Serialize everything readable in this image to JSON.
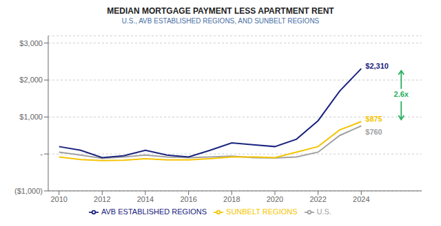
{
  "chart_data": {
    "type": "line",
    "title": "MEDIAN MORTGAGE PAYMENT LESS APARTMENT RENT",
    "subtitle": "U.S., AVB ESTABLISHED REGIONS, AND SUNBELT REGIONS",
    "x": [
      2010,
      2011,
      2012,
      2013,
      2014,
      2015,
      2016,
      2017,
      2018,
      2019,
      2020,
      2021,
      2022,
      2023,
      2024
    ],
    "series": [
      {
        "name": "U.S.",
        "color": "#a0a0a0",
        "values": [
          50,
          -30,
          -120,
          -80,
          -30,
          -80,
          -100,
          -80,
          -60,
          -100,
          -110,
          -80,
          50,
          500,
          760
        ]
      },
      {
        "name": "AVB ESTABLISHED REGIONS",
        "color": "#1a237e",
        "values": [
          200,
          100,
          -100,
          -50,
          100,
          -30,
          -80,
          100,
          300,
          250,
          200,
          400,
          900,
          1700,
          2310
        ]
      },
      {
        "name": "SUNBELT REGIONS",
        "color": "#f5c400",
        "values": [
          -80,
          -150,
          -180,
          -170,
          -130,
          -160,
          -160,
          -130,
          -80,
          -80,
          -100,
          50,
          200,
          650,
          875
        ]
      }
    ],
    "xlim": [
      2009.5,
      2026.8
    ],
    "xticks": [
      2010,
      2012,
      2014,
      2016,
      2018,
      2020,
      2022,
      2024
    ],
    "ylim": [
      -1000,
      3200
    ],
    "yticks": [
      {
        "value": -1000,
        "label": "($1,000)"
      },
      {
        "value": 0,
        "label": "-"
      },
      {
        "value": 1000,
        "label": "$1,000"
      },
      {
        "value": 2000,
        "label": "$2,000"
      },
      {
        "value": 3000,
        "label": "$3,000"
      }
    ],
    "grid": "y",
    "legend": "bottom",
    "annotations": [
      {
        "text": "$2,310",
        "x": 2024,
        "y": 2310,
        "color": "#1a237e"
      },
      {
        "text": "$875",
        "x": 2024,
        "y": 875,
        "color": "#f5c400"
      },
      {
        "text": "$760",
        "x": 2024,
        "y": 760,
        "color": "#a0a0a0"
      },
      {
        "text": "2.6x",
        "x": 2024,
        "y": [
          875,
          2310
        ],
        "color": "#27ae60"
      }
    ]
  }
}
